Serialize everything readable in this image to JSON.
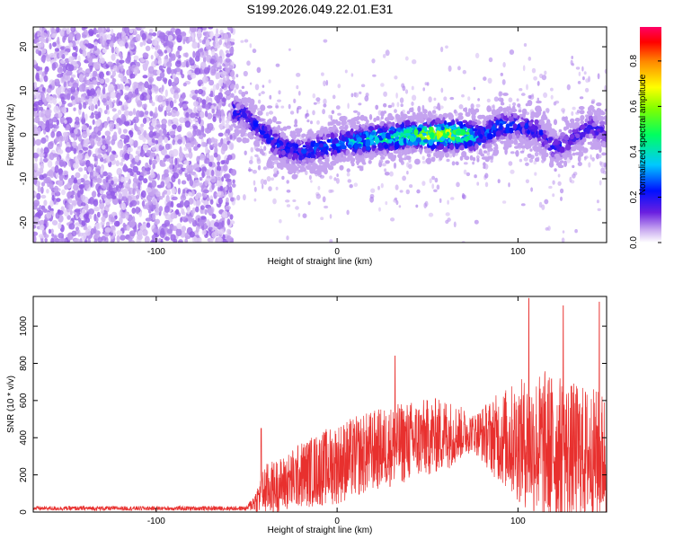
{
  "title": "S199.2026.049.22.01.E31",
  "colors": {
    "snr_line": "#e8302e",
    "spectrogram_low": "#c8a8f0",
    "spectrogram_base": "#6a1fe0"
  },
  "chart_data": [
    {
      "type": "heatmap",
      "name": "spectrogram",
      "xlabel": "Height of straight line (km)",
      "ylabel": "Frequency (Hz)",
      "xlim": [
        -168,
        149
      ],
      "ylim": [
        -24.5,
        24.5
      ],
      "xticks": [
        "-100",
        "0",
        "100"
      ],
      "xtick_values": [
        -100,
        0,
        100
      ],
      "yticks": [
        "-20",
        "-10",
        "0",
        "10",
        "20"
      ],
      "ytick_values": [
        -20,
        -10,
        0,
        10,
        20
      ],
      "colorbar": {
        "label": "Normalized spectral amplitude",
        "range": [
          0.0,
          0.95
        ],
        "ticks": [
          "0.0",
          "0.2",
          "0.4",
          "0.6",
          "0.8"
        ],
        "tick_values": [
          0.0,
          0.2,
          0.4,
          0.6,
          0.8
        ]
      },
      "noise_region": {
        "x_from": -168,
        "x_to": -57,
        "amplitude": 0.08
      },
      "trace": [
        {
          "x": -60,
          "y": 6
        },
        {
          "x": -50,
          "y": 4
        },
        {
          "x": -40,
          "y": 0
        },
        {
          "x": -30,
          "y": -3
        },
        {
          "x": -20,
          "y": -4
        },
        {
          "x": -10,
          "y": -3
        },
        {
          "x": 0,
          "y": -2
        },
        {
          "x": 10,
          "y": -1.5
        },
        {
          "x": 20,
          "y": -1
        },
        {
          "x": 30,
          "y": -0.5
        },
        {
          "x": 40,
          "y": 0
        },
        {
          "x": 50,
          "y": 0
        },
        {
          "x": 60,
          "y": 0
        },
        {
          "x": 70,
          "y": 0
        },
        {
          "x": 80,
          "y": -0.5
        },
        {
          "x": 90,
          "y": 2
        },
        {
          "x": 100,
          "y": 2
        },
        {
          "x": 110,
          "y": 1
        },
        {
          "x": 120,
          "y": -3
        },
        {
          "x": 130,
          "y": -1
        },
        {
          "x": 140,
          "y": 2
        },
        {
          "x": 149,
          "y": 0
        }
      ],
      "trace_amplitude": [
        {
          "x": -60,
          "a": 0.2
        },
        {
          "x": -40,
          "a": 0.25
        },
        {
          "x": -20,
          "a": 0.25
        },
        {
          "x": 0,
          "a": 0.3
        },
        {
          "x": 20,
          "a": 0.45
        },
        {
          "x": 40,
          "a": 0.5
        },
        {
          "x": 55,
          "a": 0.7
        },
        {
          "x": 60,
          "a": 0.75
        },
        {
          "x": 70,
          "a": 0.6
        },
        {
          "x": 80,
          "a": 0.3
        },
        {
          "x": 100,
          "a": 0.25
        },
        {
          "x": 120,
          "a": 0.2
        },
        {
          "x": 149,
          "a": 0.18
        }
      ]
    },
    {
      "type": "line",
      "name": "snr",
      "xlabel": "Height of straight line (km)",
      "ylabel": "SNR (10 * v/v)",
      "xlim": [
        -168,
        149
      ],
      "ylim": [
        0,
        1160
      ],
      "xticks": [
        "-100",
        "0",
        "100"
      ],
      "xtick_values": [
        -100,
        0,
        100
      ],
      "yticks": [
        "0",
        "200",
        "400",
        "600",
        "800",
        "1000"
      ],
      "ytick_values": [
        0,
        200,
        400,
        600,
        800,
        1000
      ],
      "envelope": [
        {
          "x": -168,
          "mean": 20,
          "spread": 12
        },
        {
          "x": -50,
          "mean": 20,
          "spread": 12
        },
        {
          "x": -45,
          "mean": 60,
          "spread": 60
        },
        {
          "x": -40,
          "mean": 120,
          "spread": 140
        },
        {
          "x": -30,
          "mean": 150,
          "spread": 150
        },
        {
          "x": -20,
          "mean": 200,
          "spread": 180
        },
        {
          "x": 0,
          "mean": 260,
          "spread": 220
        },
        {
          "x": 20,
          "mean": 330,
          "spread": 220
        },
        {
          "x": 40,
          "mean": 380,
          "spread": 220
        },
        {
          "x": 60,
          "mean": 420,
          "spread": 200
        },
        {
          "x": 75,
          "mean": 430,
          "spread": 100
        },
        {
          "x": 90,
          "mean": 400,
          "spread": 250
        },
        {
          "x": 100,
          "mean": 380,
          "spread": 330
        },
        {
          "x": 115,
          "mean": 350,
          "spread": 420
        },
        {
          "x": 130,
          "mean": 320,
          "spread": 380
        },
        {
          "x": 149,
          "mean": 300,
          "spread": 350
        }
      ],
      "peaks": [
        {
          "x": -42,
          "y": 450
        },
        {
          "x": 32,
          "y": 840
        },
        {
          "x": 106,
          "y": 1150
        },
        {
          "x": 125,
          "y": 1110
        },
        {
          "x": 145,
          "y": 1130
        }
      ]
    }
  ]
}
